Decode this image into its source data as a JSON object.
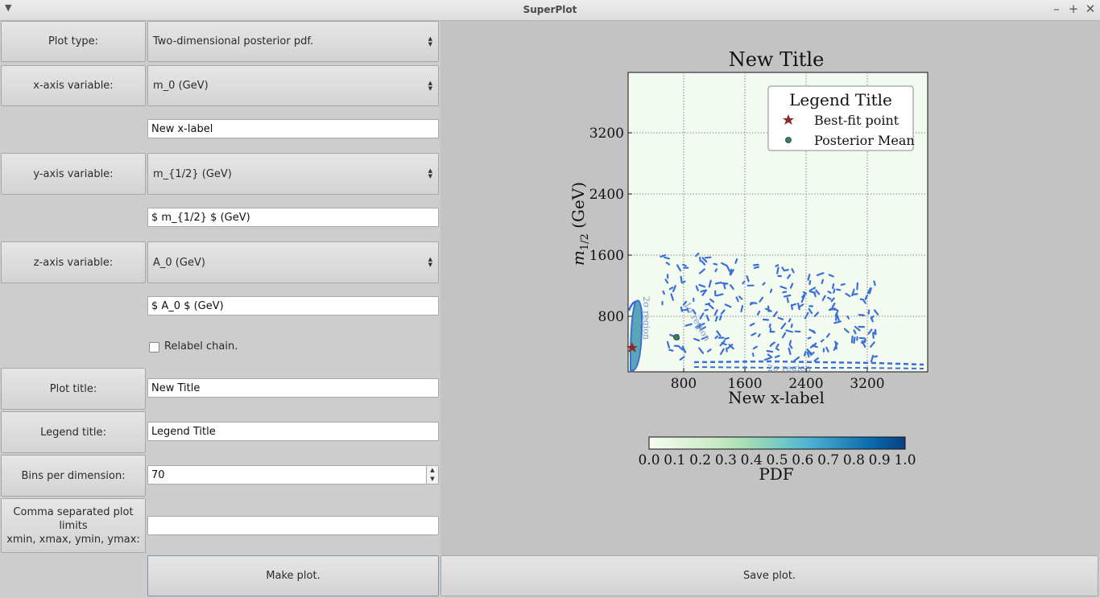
{
  "window": {
    "title": "SuperPlot"
  },
  "controls": {
    "plot_type_label": "Plot type:",
    "plot_type_value": "Two-dimensional posterior pdf.",
    "x_axis_label": "x-axis variable:",
    "x_axis_value": "m_0  (GeV)",
    "x_label_text": "New x-label",
    "y_axis_label": "y-axis variable:",
    "y_axis_value": "m_{1/2}  (GeV)",
    "y_label_text": "$ m_{1/2} $ (GeV)",
    "z_axis_label": "z-axis variable:",
    "z_axis_value": "A_0  (GeV)",
    "z_label_text": "$ A_0 $ (GeV)",
    "relabel_label": "Relabel chain.",
    "plot_title_label": "Plot title:",
    "plot_title_value": "New Title",
    "legend_title_label": "Legend title:",
    "legend_title_value": "Legend Title",
    "bins_label": "Bins per dimension:",
    "bins_value": "70",
    "limits_label_line1": "Comma separated plot limits",
    "limits_label_line2": "xmin, xmax, ymin, ymax:",
    "limits_value": "",
    "make_plot_label": "Make plot.",
    "save_plot_label": "Save plot."
  },
  "chart_data": {
    "type": "contour",
    "title": "New Title",
    "xlabel": "New x-label",
    "ylabel": "m_{1/2} (GeV)",
    "xlim": [
      0,
      3200
    ],
    "ylim": [
      0,
      4000
    ],
    "xticks": [
      "800",
      "1600",
      "2400",
      "3200"
    ],
    "yticks": [
      "800",
      "1600",
      "2400",
      "3200"
    ],
    "grid": true,
    "legend": {
      "title": "Legend Title",
      "placement": "top-right",
      "entries": [
        {
          "label": "Best-fit point",
          "marker": "star",
          "color": "#8b2a2a"
        },
        {
          "label": "Posterior Mean",
          "marker": "circle",
          "color": "#3e7b5a"
        }
      ]
    },
    "best_fit_point": {
      "x": 60,
      "y": 300
    },
    "posterior_mean": {
      "x": 700,
      "y": 450
    },
    "contour_labels": [
      "2σ region",
      "1σ region",
      "2σ region"
    ],
    "colorbar": {
      "label": "PDF",
      "ticks": [
        "0.0",
        "0.1",
        "0.2",
        "0.3",
        "0.4",
        "0.5",
        "0.6",
        "0.7",
        "0.8",
        "0.9",
        "1.0"
      ],
      "colors": [
        "#f7fcf0",
        "#e0f3db",
        "#ccebc5",
        "#a8ddb5",
        "#7bccc4",
        "#4eb3d3",
        "#2b8cbe",
        "#0868ac",
        "#084081"
      ]
    },
    "colors": {
      "contour": "#3a6fd8",
      "background": "#f3fbf0"
    }
  }
}
